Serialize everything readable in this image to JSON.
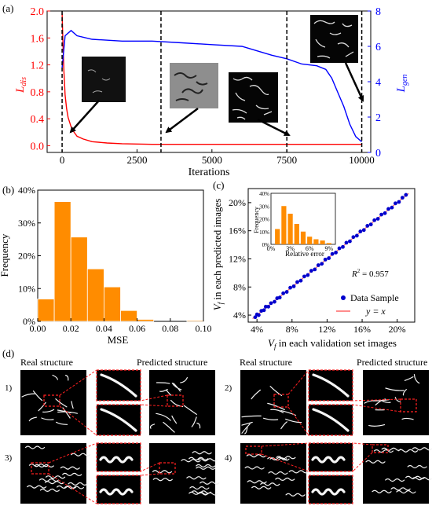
{
  "chart_data": [
    {
      "panel": "(a)",
      "type": "line",
      "xlabel": "Iterations",
      "x_ticks": [
        "0",
        "2500",
        "5000",
        "7500",
        "10000"
      ],
      "xlim": [
        -500,
        10300
      ],
      "left_axis": {
        "label_main": "L",
        "label_sub": "dis",
        "ylim": [
          -0.1,
          2.0
        ],
        "ticks": [
          "0.0",
          "0.4",
          "0.8",
          "1.2",
          "1.6",
          "2.0"
        ],
        "color": "#ff0000"
      },
      "right_axis": {
        "label_main": "L",
        "label_sub": "gen",
        "ylim": [
          0,
          8
        ],
        "ticks": [
          "0",
          "2",
          "4",
          "6",
          "8"
        ],
        "color": "#0000ff"
      },
      "series": [
        {
          "name": "L_dis",
          "axis": "left",
          "color": "#ff0000",
          "x": [
            0,
            30,
            60,
            100,
            150,
            200,
            300,
            400,
            500,
            700,
            1000,
            1500,
            2000,
            3000,
            4000,
            5000,
            6000,
            7000,
            8000,
            9000,
            10000
          ],
          "y": [
            1.96,
            1.5,
            1.1,
            0.75,
            0.55,
            0.42,
            0.28,
            0.2,
            0.14,
            0.1,
            0.06,
            0.04,
            0.03,
            0.02,
            0.02,
            0.02,
            0.02,
            0.02,
            0.02,
            0.02,
            0.02
          ]
        },
        {
          "name": "L_gen",
          "axis": "right",
          "color": "#0000ff",
          "x": [
            0,
            100,
            300,
            500,
            1000,
            2000,
            3000,
            4000,
            5000,
            6000,
            7000,
            7500,
            8000,
            8500,
            8800,
            9000,
            9200,
            9400,
            9600,
            9800,
            10000
          ],
          "y": [
            4.8,
            6.6,
            6.9,
            6.6,
            6.4,
            6.3,
            6.3,
            6.2,
            6.1,
            6.0,
            5.5,
            5.3,
            5.0,
            4.9,
            4.7,
            4.2,
            3.4,
            2.6,
            1.6,
            0.9,
            0.6
          ]
        }
      ],
      "markers_at": [
        0,
        3300,
        7500,
        10000
      ]
    },
    {
      "panel": "(b)",
      "type": "bar",
      "xlabel": "MSE",
      "ylabel": "Frequency",
      "x_ticks": [
        "0.00",
        "0.02",
        "0.04",
        "0.06",
        "0.08",
        "0.10"
      ],
      "y_ticks": [
        "0%",
        "10%",
        "20%",
        "30%",
        "40%"
      ],
      "xlim": [
        0,
        0.1
      ],
      "ylim": [
        0,
        40
      ],
      "bin_width": 0.01,
      "bin_starts": [
        0.0,
        0.01,
        0.02,
        0.03,
        0.04,
        0.05,
        0.06,
        0.07,
        0.08,
        0.09
      ],
      "values": [
        6.8,
        36.5,
        25.7,
        16.0,
        10.5,
        3.3,
        0.6,
        0.0,
        0.0,
        0.3
      ],
      "color": "#ff8c00"
    },
    {
      "panel": "(c)",
      "type": "scatter",
      "xlabel_main": "V",
      "xlabel_sub": "f",
      "xlabel_rest": " in each validation set images",
      "ylabel_main": "V",
      "ylabel_sub": "f",
      "ylabel_rest": " in each predicted images",
      "x_ticks": [
        "4%",
        "8%",
        "12%",
        "16%",
        "20%"
      ],
      "y_ticks": [
        "4%",
        "8%",
        "12%",
        "16%",
        "20%"
      ],
      "xlim": [
        3,
        22
      ],
      "ylim": [
        3,
        22
      ],
      "r2_label": "R",
      "r2_value": " = 0.957",
      "legend": [
        {
          "label": "Data Sample",
          "color": "#0000cd",
          "marker": "circle"
        },
        {
          "label": "y = x",
          "color": "#ff6666",
          "marker": "line"
        }
      ],
      "series": [
        {
          "name": "Data Sample",
          "x": [
            3.8,
            4.0,
            4.2,
            4.5,
            4.8,
            5.0,
            5.3,
            5.6,
            6.0,
            6.3,
            6.6,
            7.0,
            7.4,
            7.8,
            8.2,
            8.6,
            9.0,
            9.4,
            9.8,
            10.2,
            10.6,
            11.0,
            11.4,
            11.8,
            12.2,
            12.6,
            13.0,
            13.4,
            13.8,
            14.2,
            14.6,
            15.0,
            15.4,
            15.8,
            16.2,
            16.6,
            17.0,
            17.4,
            17.8,
            18.2,
            18.6,
            19.0,
            19.4,
            19.8,
            20.2,
            20.6,
            21.0
          ],
          "y": [
            3.7,
            4.1,
            4.0,
            4.6,
            4.7,
            5.2,
            5.2,
            5.7,
            5.9,
            6.4,
            6.5,
            7.1,
            7.3,
            7.9,
            8.1,
            8.7,
            8.9,
            9.5,
            9.7,
            10.3,
            10.5,
            11.1,
            11.3,
            11.9,
            12.1,
            12.7,
            12.9,
            13.5,
            13.7,
            14.3,
            14.5,
            15.1,
            15.3,
            15.9,
            16.1,
            16.7,
            16.9,
            17.5,
            17.7,
            18.3,
            18.5,
            19.1,
            19.3,
            19.9,
            20.1,
            20.7,
            21.1
          ]
        }
      ],
      "inset": {
        "type": "bar",
        "xlabel": "Relative error",
        "ylabel": "Frequency",
        "x_ticks": [
          "0%",
          "3%",
          "6%",
          "9%"
        ],
        "y_ticks": [
          "0%",
          "10%",
          "20%",
          "30%",
          "40%"
        ],
        "xlim": [
          0,
          10
        ],
        "ylim": [
          0,
          40
        ],
        "bin_starts": [
          0.5,
          1.5,
          2.5,
          3.5,
          4.5,
          5.5,
          6.5,
          7.5,
          8.5
        ],
        "values": [
          12,
          30,
          24,
          16,
          10,
          6,
          4,
          3,
          1
        ],
        "color": "#ff8c00"
      }
    }
  ],
  "panel_labels": {
    "a": "(a)",
    "b": "(b)",
    "c": "(c)",
    "d": "(d)"
  },
  "panel_d": {
    "real_label": "Real structure",
    "pred_label": "Predicted  structure",
    "rows": [
      "1)",
      "2)",
      "3)",
      "4)"
    ]
  }
}
